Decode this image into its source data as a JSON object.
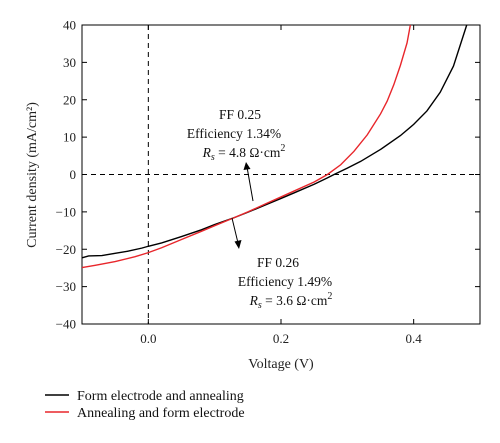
{
  "chart_data": {
    "type": "line",
    "title": "",
    "xlabel": "Voltage (V)",
    "ylabel": "Current density (mA/cm²)",
    "xlim": [
      -0.1,
      0.5
    ],
    "ylim": [
      -40,
      40
    ],
    "x_ticks": [
      0.0,
      0.2,
      0.4
    ],
    "x_tick_labels": [
      "0.0",
      "0.2",
      "0.4"
    ],
    "y_ticks": [
      -40,
      -30,
      -20,
      -10,
      0,
      10,
      20,
      30,
      40
    ],
    "y_tick_labels": [
      "−40",
      "−30",
      "−20",
      "−10",
      "0",
      "10",
      "20",
      "30",
      "40"
    ],
    "grid": false,
    "legend_position": "bottom-outside",
    "series": [
      {
        "name": "Form electrode and annealing",
        "color": "#000000",
        "x": [
          -0.1,
          -0.09,
          -0.07,
          -0.05,
          -0.03,
          -0.01,
          0.0,
          0.02,
          0.05,
          0.08,
          0.1,
          0.13,
          0.15,
          0.18,
          0.2,
          0.22,
          0.25,
          0.27,
          0.28,
          0.3,
          0.32,
          0.35,
          0.38,
          0.4,
          0.42,
          0.44,
          0.46,
          0.48
        ],
        "y": [
          -22.3,
          -21.8,
          -21.7,
          -21.1,
          -20.5,
          -19.7,
          -19.2,
          -18.3,
          -16.6,
          -14.8,
          -13.4,
          -11.5,
          -10.1,
          -7.9,
          -6.4,
          -4.9,
          -2.6,
          -0.9,
          0.0,
          1.7,
          3.5,
          6.7,
          10.4,
          13.4,
          17.0,
          22.0,
          29.0,
          40.0
        ]
      },
      {
        "name": "Annealing and form electrode",
        "color": "#e8262b",
        "x": [
          -0.1,
          -0.08,
          -0.05,
          -0.02,
          0.0,
          0.02,
          0.05,
          0.08,
          0.1,
          0.13,
          0.15,
          0.18,
          0.2,
          0.22,
          0.25,
          0.27,
          0.29,
          0.31,
          0.33,
          0.35,
          0.36,
          0.37,
          0.38,
          0.39,
          0.395
        ],
        "y": [
          -24.9,
          -24.3,
          -23.3,
          -22.0,
          -20.9,
          -19.6,
          -17.4,
          -15.2,
          -13.7,
          -11.5,
          -10.0,
          -7.6,
          -6.0,
          -4.4,
          -2.0,
          0.0,
          2.6,
          6.2,
          10.6,
          16.2,
          19.6,
          24.0,
          29.2,
          35.2,
          40.0
        ]
      }
    ],
    "annotations": {
      "upper": {
        "line1": "FF 0.25",
        "line2": "Efficiency 1.34%",
        "rs_symbol": "R",
        "rs_sub": "s",
        "rs_value": " = 4.8 Ω·cm",
        "rs_sup": "2"
      },
      "lower": {
        "line1": "FF 0.26",
        "line2": "Efficiency 1.49%",
        "rs_symbol": "R",
        "rs_sub": "s",
        "rs_value": " = 3.6 Ω·cm",
        "rs_sup": "2"
      }
    }
  }
}
